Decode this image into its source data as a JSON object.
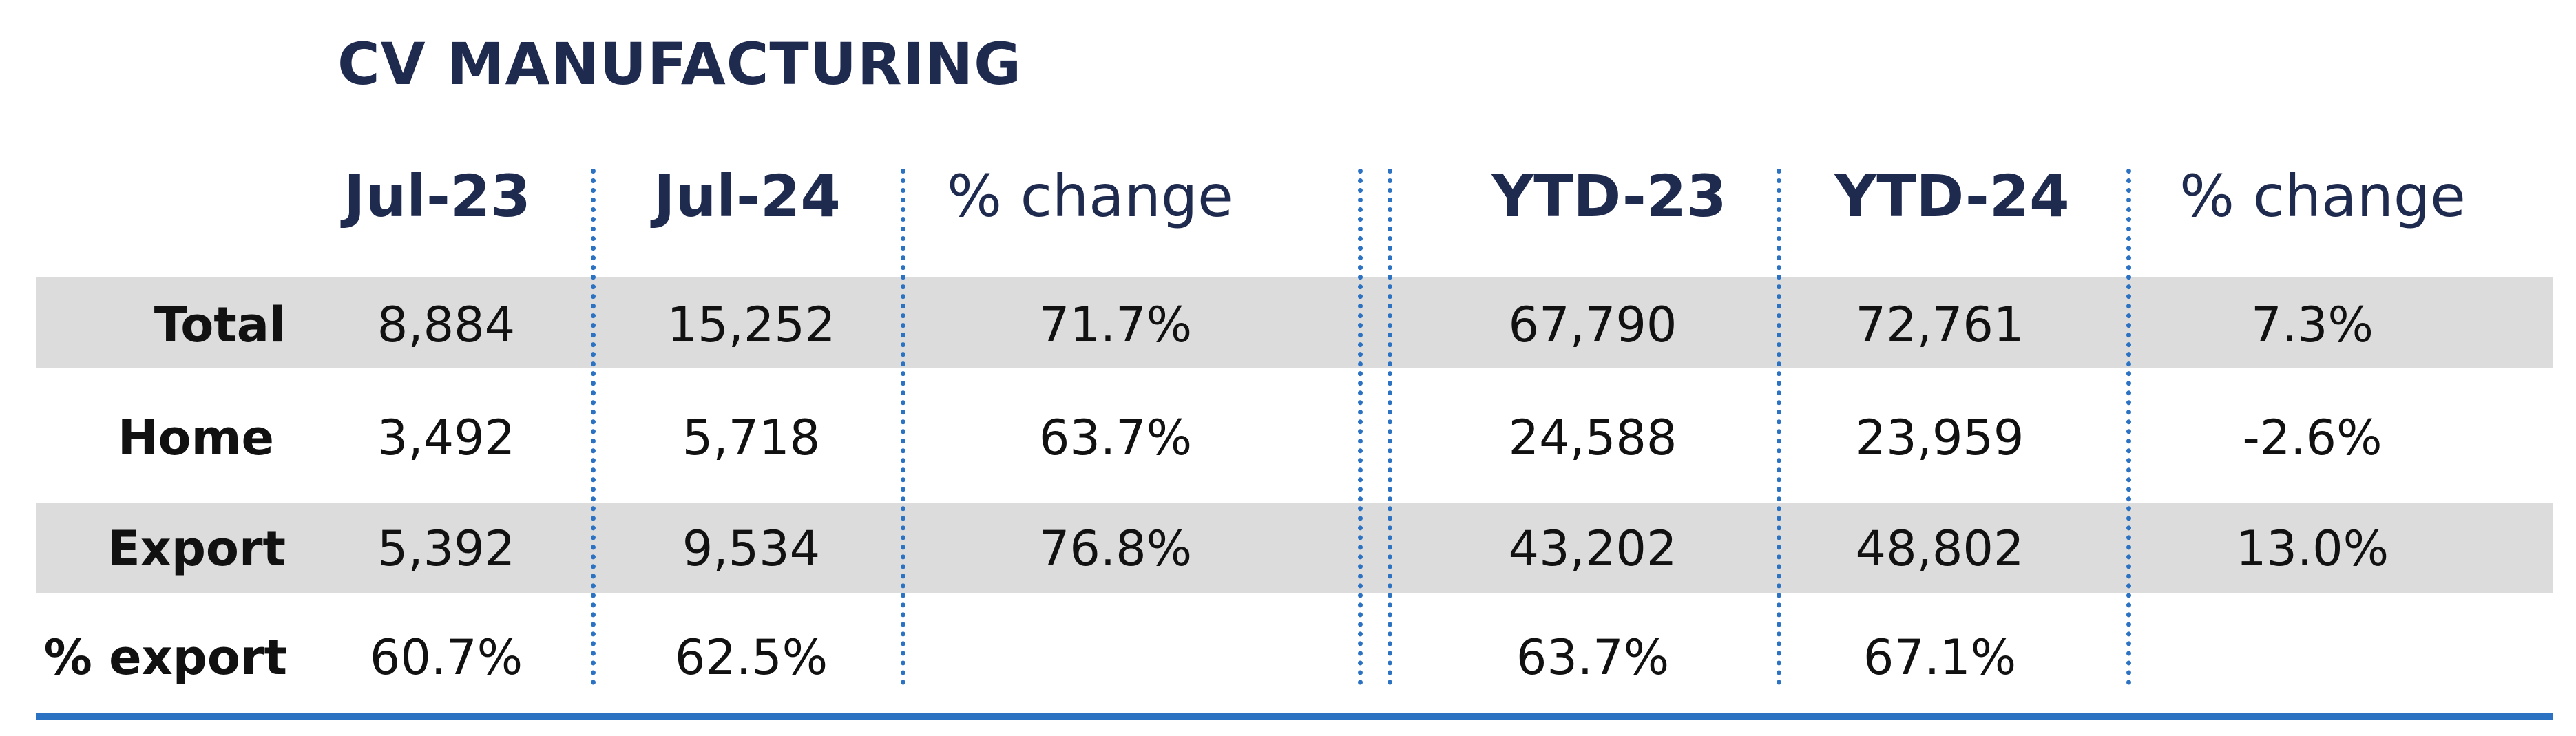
{
  "chart_data": {
    "type": "table",
    "title": "CV MANUFACTURING",
    "columns": [
      "Jul-23",
      "Jul-24",
      "% change",
      "YTD-23",
      "YTD-24",
      "% change"
    ],
    "rows": [
      {
        "label": "Total",
        "values": [
          "8,884",
          "15,252",
          "71.7%",
          "67,790",
          "72,761",
          "7.3%"
        ]
      },
      {
        "label": "Home",
        "values": [
          "3,492",
          "5,718",
          "63.7%",
          "24,588",
          "23,959",
          "-2.6%"
        ]
      },
      {
        "label": "Export",
        "values": [
          "5,392",
          "9,534",
          "76.8%",
          "43,202",
          "48,802",
          "13.0%"
        ]
      },
      {
        "label": "% export",
        "values": [
          "60.7%",
          "62.5%",
          "",
          "63.7%",
          "67.1%",
          ""
        ]
      }
    ],
    "row_shading": [
      "#dcdcdc",
      "#ffffff",
      "#dcdcdc",
      "#ffffff"
    ],
    "divider_color": "#2b72c2",
    "heading_color": "#1f2a4f"
  }
}
